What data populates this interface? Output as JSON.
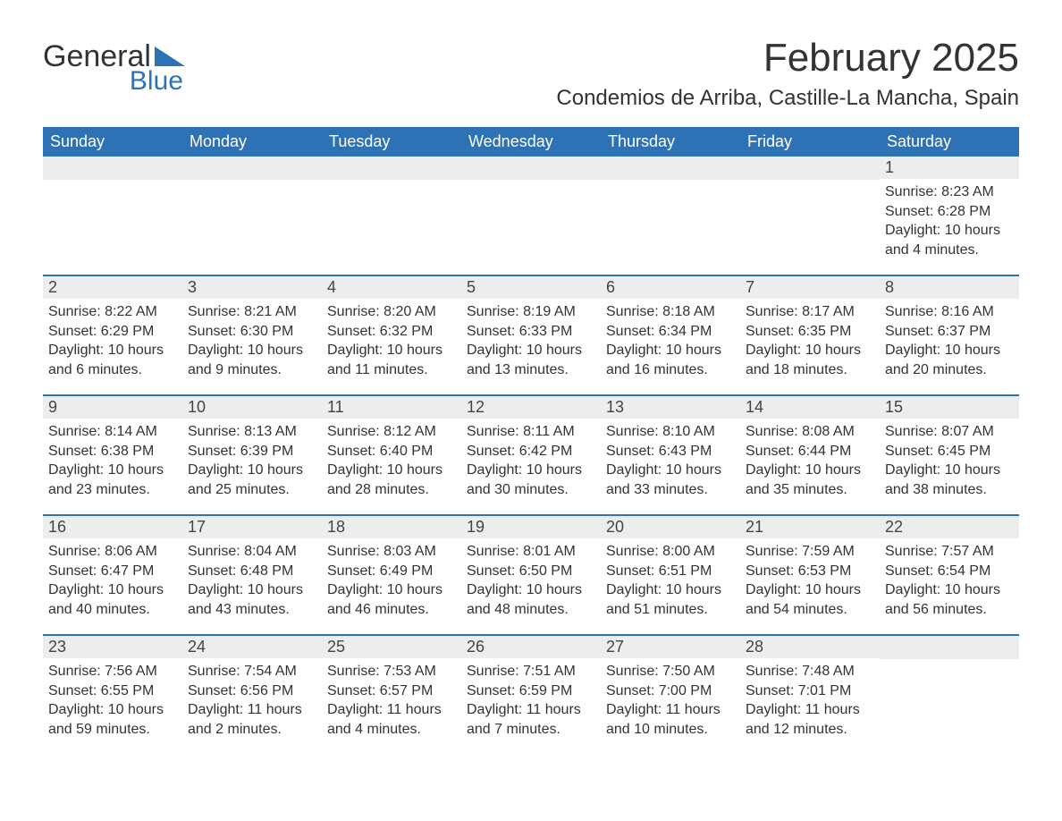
{
  "logo": {
    "text1": "General",
    "text2": "Blue",
    "triangle_color": "#2e72b6"
  },
  "title": "February 2025",
  "location": "Condemios de Arriba, Castille-La Mancha, Spain",
  "colors": {
    "header_bg": "#2e72b6",
    "header_fg": "#ffffff",
    "daynum_bg": "#ededed",
    "rule": "#2e72b6",
    "text": "#333333",
    "page_bg": "#ffffff"
  },
  "weekdays": [
    "Sunday",
    "Monday",
    "Tuesday",
    "Wednesday",
    "Thursday",
    "Friday",
    "Saturday"
  ],
  "labels": {
    "sunrise": "Sunrise:",
    "sunset": "Sunset:",
    "daylight": "Daylight:"
  },
  "weeks": [
    [
      null,
      null,
      null,
      null,
      null,
      null,
      {
        "d": "1",
        "sr": "8:23 AM",
        "ss": "6:28 PM",
        "dl": "10 hours and 4 minutes."
      }
    ],
    [
      {
        "d": "2",
        "sr": "8:22 AM",
        "ss": "6:29 PM",
        "dl": "10 hours and 6 minutes."
      },
      {
        "d": "3",
        "sr": "8:21 AM",
        "ss": "6:30 PM",
        "dl": "10 hours and 9 minutes."
      },
      {
        "d": "4",
        "sr": "8:20 AM",
        "ss": "6:32 PM",
        "dl": "10 hours and 11 minutes."
      },
      {
        "d": "5",
        "sr": "8:19 AM",
        "ss": "6:33 PM",
        "dl": "10 hours and 13 minutes."
      },
      {
        "d": "6",
        "sr": "8:18 AM",
        "ss": "6:34 PM",
        "dl": "10 hours and 16 minutes."
      },
      {
        "d": "7",
        "sr": "8:17 AM",
        "ss": "6:35 PM",
        "dl": "10 hours and 18 minutes."
      },
      {
        "d": "8",
        "sr": "8:16 AM",
        "ss": "6:37 PM",
        "dl": "10 hours and 20 minutes."
      }
    ],
    [
      {
        "d": "9",
        "sr": "8:14 AM",
        "ss": "6:38 PM",
        "dl": "10 hours and 23 minutes."
      },
      {
        "d": "10",
        "sr": "8:13 AM",
        "ss": "6:39 PM",
        "dl": "10 hours and 25 minutes."
      },
      {
        "d": "11",
        "sr": "8:12 AM",
        "ss": "6:40 PM",
        "dl": "10 hours and 28 minutes."
      },
      {
        "d": "12",
        "sr": "8:11 AM",
        "ss": "6:42 PM",
        "dl": "10 hours and 30 minutes."
      },
      {
        "d": "13",
        "sr": "8:10 AM",
        "ss": "6:43 PM",
        "dl": "10 hours and 33 minutes."
      },
      {
        "d": "14",
        "sr": "8:08 AM",
        "ss": "6:44 PM",
        "dl": "10 hours and 35 minutes."
      },
      {
        "d": "15",
        "sr": "8:07 AM",
        "ss": "6:45 PM",
        "dl": "10 hours and 38 minutes."
      }
    ],
    [
      {
        "d": "16",
        "sr": "8:06 AM",
        "ss": "6:47 PM",
        "dl": "10 hours and 40 minutes."
      },
      {
        "d": "17",
        "sr": "8:04 AM",
        "ss": "6:48 PM",
        "dl": "10 hours and 43 minutes."
      },
      {
        "d": "18",
        "sr": "8:03 AM",
        "ss": "6:49 PM",
        "dl": "10 hours and 46 minutes."
      },
      {
        "d": "19",
        "sr": "8:01 AM",
        "ss": "6:50 PM",
        "dl": "10 hours and 48 minutes."
      },
      {
        "d": "20",
        "sr": "8:00 AM",
        "ss": "6:51 PM",
        "dl": "10 hours and 51 minutes."
      },
      {
        "d": "21",
        "sr": "7:59 AM",
        "ss": "6:53 PM",
        "dl": "10 hours and 54 minutes."
      },
      {
        "d": "22",
        "sr": "7:57 AM",
        "ss": "6:54 PM",
        "dl": "10 hours and 56 minutes."
      }
    ],
    [
      {
        "d": "23",
        "sr": "7:56 AM",
        "ss": "6:55 PM",
        "dl": "10 hours and 59 minutes."
      },
      {
        "d": "24",
        "sr": "7:54 AM",
        "ss": "6:56 PM",
        "dl": "11 hours and 2 minutes."
      },
      {
        "d": "25",
        "sr": "7:53 AM",
        "ss": "6:57 PM",
        "dl": "11 hours and 4 minutes."
      },
      {
        "d": "26",
        "sr": "7:51 AM",
        "ss": "6:59 PM",
        "dl": "11 hours and 7 minutes."
      },
      {
        "d": "27",
        "sr": "7:50 AM",
        "ss": "7:00 PM",
        "dl": "11 hours and 10 minutes."
      },
      {
        "d": "28",
        "sr": "7:48 AM",
        "ss": "7:01 PM",
        "dl": "11 hours and 12 minutes."
      },
      null
    ]
  ]
}
